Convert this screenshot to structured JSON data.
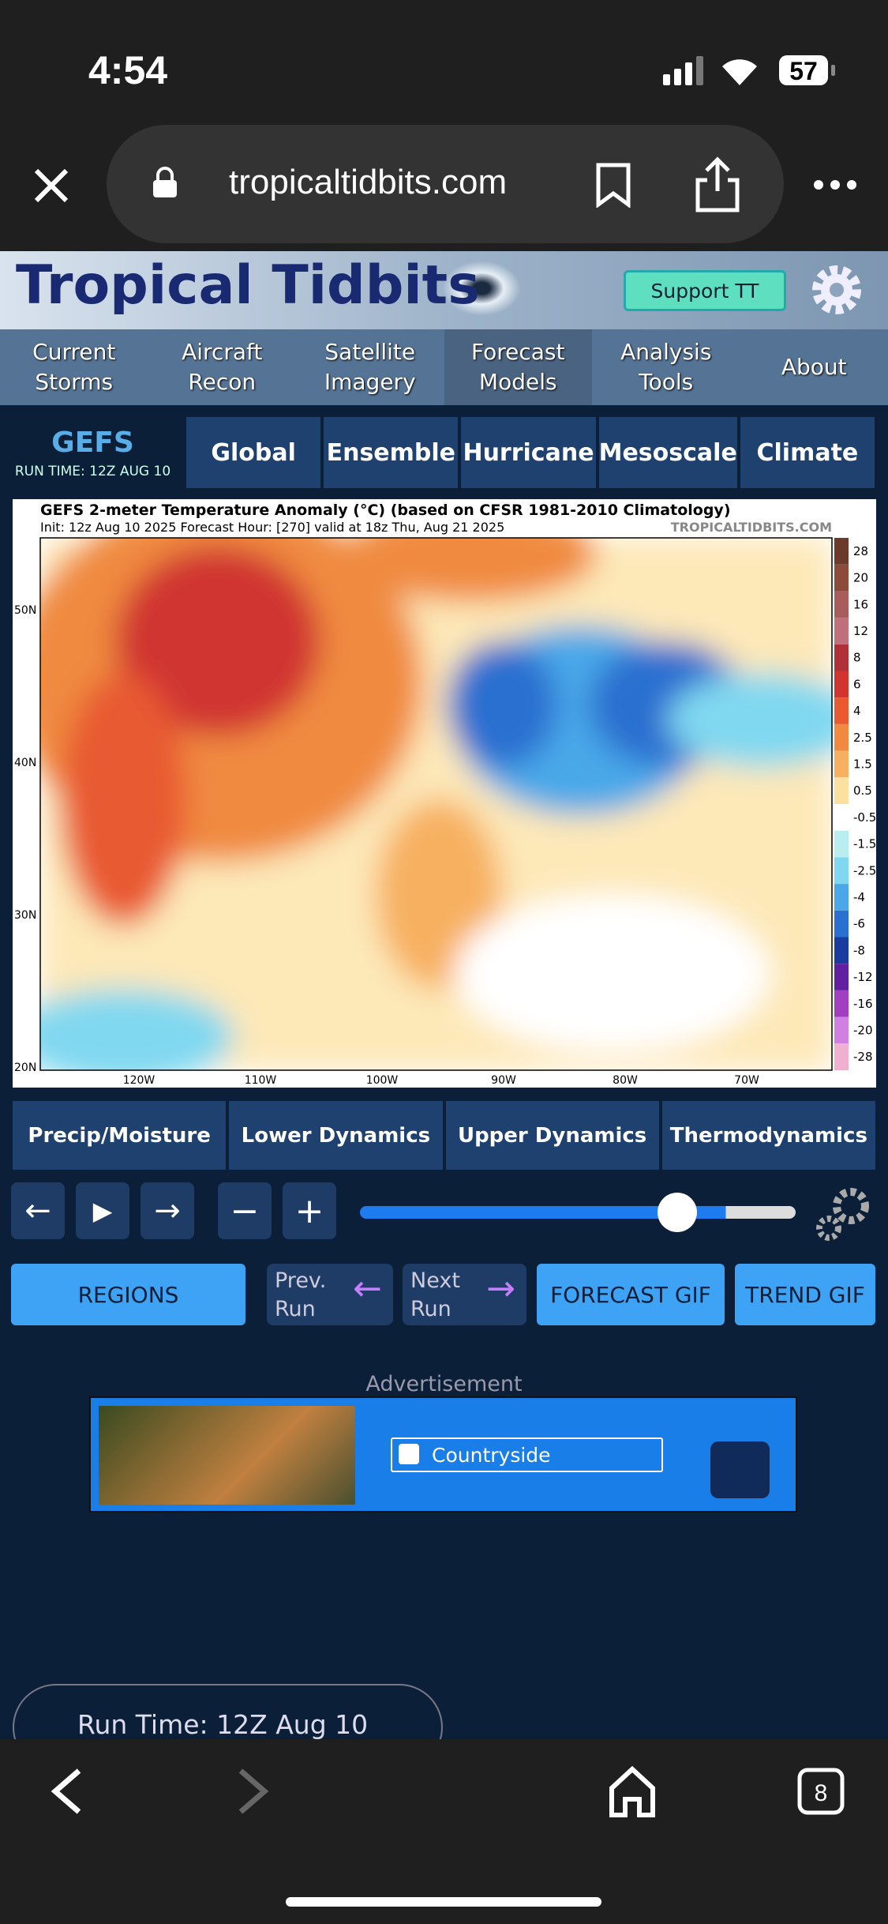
{
  "status_bar": {
    "time": "4:54",
    "battery": "57"
  },
  "browser": {
    "url": "tropicaltidbits.com",
    "tab_count": "8"
  },
  "site": {
    "title": "Tropical Tidbits",
    "support": "Support TT",
    "nav": [
      "Current Storms",
      "Aircraft Recon",
      "Satellite Imagery",
      "Forecast Models",
      "Analysis Tools",
      "About"
    ]
  },
  "model": {
    "name": "GEFS",
    "run_time": "RUN TIME: 12Z AUG 10",
    "tabs": [
      "Global",
      "Ensemble",
      "Hurricane",
      "Mesoscale",
      "Climate"
    ]
  },
  "map": {
    "title": "GEFS 2-meter Temperature Anomaly (°C) (based on CFSR 1981-2010 Climatology)",
    "subtitle": "Init: 12z Aug 10 2025   Forecast Hour: [270]   valid at 18z Thu, Aug 21 2025",
    "watermark": "TROPICALTIDBITS.COM",
    "lat_labels": [
      "50N",
      "40N",
      "30N",
      "20N"
    ],
    "lon_labels": [
      "120W",
      "110W",
      "100W",
      "90W",
      "80W",
      "70W"
    ],
    "colorbar_labels": [
      "28",
      "20",
      "16",
      "12",
      "8",
      "6",
      "4",
      "2.5",
      "1.5",
      "0.5",
      "-0.5",
      "-1.5",
      "-2.5",
      "-4",
      "-6",
      "-8",
      "-12",
      "-16",
      "-20",
      "-28"
    ],
    "colorbar_colors": [
      "#6b3a2a",
      "#8b4a3a",
      "#a85c5c",
      "#c0707a",
      "#b0303a",
      "#d03530",
      "#e85a30",
      "#f08a40",
      "#f7b060",
      "#fbe0a0",
      "#ffffff",
      "#b8eef0",
      "#80d8f0",
      "#4aa8e8",
      "#2a70d0",
      "#1a3ca0",
      "#6020a0",
      "#a040c0",
      "#d080e0",
      "#f0b0d0"
    ]
  },
  "categories": [
    "Precip/Moisture",
    "Lower Dynamics",
    "Upper Dynamics",
    "Thermodynamics"
  ],
  "buttons": {
    "regions": "REGIONS",
    "prev": "Prev. Run",
    "next": "Next Run",
    "forecast_gif": "FORECAST GIF",
    "trend_gif": "TREND GIF"
  },
  "ad": {
    "label": "Advertisement",
    "text": "Countryside"
  },
  "run_select": "Run Time: 12Z Aug 10"
}
